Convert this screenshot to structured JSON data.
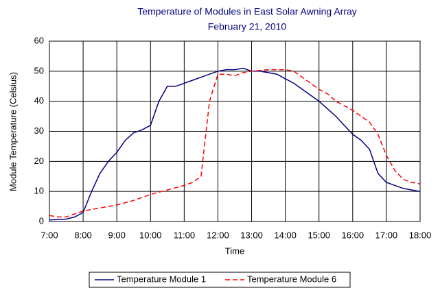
{
  "chart_data": {
    "type": "line",
    "title": "Temperature of Modules in East Solar Awning Array",
    "subtitle": "February 21, 2010",
    "x_label": "Time",
    "y_label": "Module Temperature (Celsius)",
    "xlim": [
      7,
      18
    ],
    "xticks": [
      {
        "value": 7,
        "label": "7:00"
      },
      {
        "value": 8,
        "label": "8:00"
      },
      {
        "value": 9,
        "label": "9:00"
      },
      {
        "value": 10,
        "label": "10:00"
      },
      {
        "value": 11,
        "label": "11:00"
      },
      {
        "value": 12,
        "label": "12:00"
      },
      {
        "value": 13,
        "label": "13:00"
      },
      {
        "value": 14,
        "label": "14:00"
      },
      {
        "value": 15,
        "label": "15:00"
      },
      {
        "value": 16,
        "label": "16:00"
      },
      {
        "value": 17,
        "label": "17:00"
      },
      {
        "value": 18,
        "label": "18:00"
      }
    ],
    "ylim": [
      0,
      60
    ],
    "yticks": [
      0,
      10,
      20,
      30,
      40,
      50,
      60
    ],
    "grid": true,
    "legend": "bottom",
    "series": [
      {
        "name": "Temperature Module 1",
        "color": "#000080",
        "dash": "solid",
        "x": [
          7.0,
          7.5,
          7.75,
          8.0,
          8.25,
          8.5,
          8.75,
          9.0,
          9.25,
          9.5,
          9.75,
          10.0,
          10.25,
          10.5,
          10.75,
          11.0,
          11.25,
          11.5,
          11.75,
          12.0,
          12.25,
          12.5,
          12.75,
          13.0,
          13.25,
          13.5,
          13.75,
          14.0,
          14.25,
          14.5,
          14.75,
          15.0,
          15.25,
          15.5,
          15.75,
          16.0,
          16.25,
          16.5,
          16.75,
          17.0,
          17.25,
          17.5,
          17.75,
          18.0
        ],
        "values": [
          0.5,
          0.8,
          1.5,
          3,
          10,
          16,
          20,
          23,
          27,
          29.5,
          30.5,
          32,
          40,
          45,
          45,
          46,
          47,
          48,
          49,
          50,
          50.5,
          50.5,
          51,
          50,
          50,
          49.5,
          49,
          47.5,
          46,
          44,
          42,
          40,
          37.5,
          35,
          32,
          29,
          27,
          24,
          16,
          13,
          12,
          11,
          10.5,
          10
        ]
      },
      {
        "name": "Temperature Module 6",
        "color": "#ff0000",
        "dash": "dashed",
        "x": [
          7.0,
          7.25,
          7.5,
          7.75,
          8.0,
          8.5,
          9.0,
          9.5,
          10.0,
          10.5,
          11.0,
          11.25,
          11.5,
          11.6,
          11.75,
          12.0,
          12.25,
          12.5,
          12.75,
          13.0,
          13.5,
          14.0,
          14.25,
          14.5,
          14.75,
          15.0,
          15.25,
          15.5,
          15.75,
          16.0,
          16.25,
          16.5,
          16.75,
          17.0,
          17.25,
          17.5,
          17.75,
          18.0
        ],
        "values": [
          2,
          1.5,
          1.5,
          2.5,
          3.5,
          4.5,
          5.5,
          7,
          9,
          10.5,
          12,
          13,
          15,
          25,
          40,
          49,
          49,
          48.5,
          49.5,
          50,
          50.5,
          50.5,
          50,
          48,
          46,
          44,
          42.5,
          40,
          38.5,
          37,
          35,
          33,
          29,
          22,
          17,
          14,
          13,
          12.5
        ]
      }
    ]
  }
}
